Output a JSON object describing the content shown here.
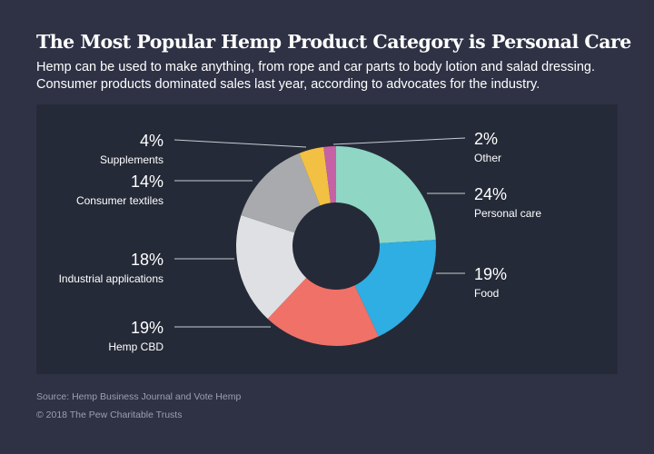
{
  "header": {
    "title": "The Most Popular Hemp Product Category is Personal Care",
    "subtitle": "Hemp can be used to make anything, from rope and car parts to body lotion and salad dressing. Consumer products dominated sales last year, according to advocates for the industry."
  },
  "footer": {
    "source": "Source: Hemp Business Journal and Vote Hemp",
    "copyright": "© 2018 The Pew Charitable Trusts"
  },
  "chart_data": {
    "type": "pie",
    "donut": true,
    "legend": "none",
    "slices": [
      {
        "label": "Personal care",
        "value": 24,
        "value_label": "24%",
        "color": "#8fd6c4"
      },
      {
        "label": "Food",
        "value": 19,
        "value_label": "19%",
        "color": "#2eaee3"
      },
      {
        "label": "Hemp CBD",
        "value": 19,
        "value_label": "19%",
        "color": "#f07167"
      },
      {
        "label": "Industrial applications",
        "value": 18,
        "value_label": "18%",
        "color": "#dfe0e3"
      },
      {
        "label": "Consumer textiles",
        "value": 14,
        "value_label": "14%",
        "color": "#a9aaae"
      },
      {
        "label": "Supplements",
        "value": 4,
        "value_label": "4%",
        "color": "#f2c042"
      },
      {
        "label": "Other",
        "value": 2,
        "value_label": "2%",
        "color": "#c761a6"
      }
    ]
  }
}
